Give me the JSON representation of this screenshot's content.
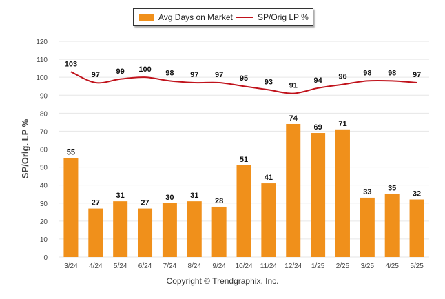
{
  "legend": {
    "bar_label": "Avg Days on Market",
    "line_label": "SP/Orig LP %"
  },
  "copyright": "Copyright © Trendgraphix, Inc.",
  "colors": {
    "bar": "#F0901B",
    "line": "#C0121B",
    "grid": "#E6E6E6",
    "axis_text": "#444444"
  },
  "chart_data": {
    "type": "bar",
    "categories": [
      "3/24",
      "4/24",
      "5/24",
      "6/24",
      "7/24",
      "8/24",
      "9/24",
      "10/24",
      "11/24",
      "12/24",
      "1/25",
      "2/25",
      "3/25",
      "4/25",
      "5/25"
    ],
    "series": [
      {
        "name": "Avg Days on Market",
        "type": "bar",
        "values": [
          55,
          27,
          31,
          27,
          30,
          31,
          28,
          51,
          41,
          74,
          69,
          71,
          33,
          35,
          32
        ]
      },
      {
        "name": "SP/Orig LP %",
        "type": "line",
        "values": [
          103,
          97,
          99,
          100,
          98,
          97,
          97,
          95,
          93,
          91,
          94,
          96,
          98,
          98,
          97
        ]
      }
    ],
    "ylabel": "SP/Orig. LP %",
    "ylim": [
      0,
      120
    ],
    "yticks": [
      0,
      10,
      20,
      30,
      40,
      50,
      60,
      70,
      80,
      90,
      100,
      110,
      120
    ],
    "grid": true,
    "legend_position": "top-center"
  }
}
